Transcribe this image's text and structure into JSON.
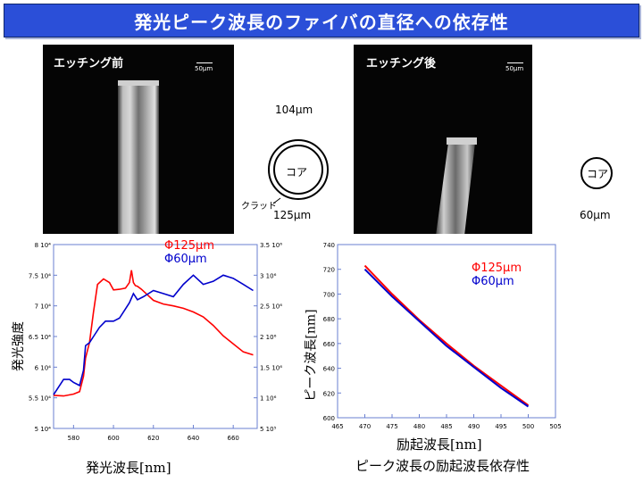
{
  "title": "発光ピーク波長のファイバの直径への依存性",
  "photos": {
    "before": {
      "label": "エッチング前",
      "scale": "50μm"
    },
    "after": {
      "label": "エッチング後",
      "scale": "50μm"
    }
  },
  "diagram_before": {
    "core_label": "コア",
    "clad_label": "クラッド",
    "inner_diameter": "104μm",
    "outer_diameter": "125μm"
  },
  "diagram_after": {
    "core_label": "コア",
    "diameter": "60μm"
  },
  "chart_data": [
    {
      "type": "line",
      "xlabel": "発光波長[nm]",
      "ylabel": "発光強度",
      "xlim": [
        570,
        672
      ],
      "ylim_left": [
        50000,
        80000
      ],
      "ylim_right": [
        500000,
        3500000
      ],
      "x_ticks": [
        "580",
        "600",
        "620",
        "640",
        "660"
      ],
      "y_ticks_left": [
        "5 10⁴",
        "5.5 10⁴",
        "6 10⁴",
        "6.5 10⁴",
        "7 10⁴",
        "7.5 10⁴",
        "8 10⁴"
      ],
      "y_ticks_right": [
        "5 10⁵",
        "1 10⁶",
        "1.5 10⁶",
        "2 10⁶",
        "2.5 10⁶",
        "3 10⁶",
        "3.5 10⁶"
      ],
      "legend": [
        "Φ125μm",
        "Φ60μm"
      ],
      "series": [
        {
          "name": "Φ125μm",
          "color": "#ff0000",
          "axis": "left",
          "x": [
            570,
            575,
            580,
            583,
            585,
            586,
            588,
            590,
            592,
            595,
            598,
            600,
            603,
            606,
            608,
            609,
            610,
            611,
            612,
            614,
            617,
            620,
            625,
            630,
            635,
            640,
            645,
            650,
            655,
            660,
            665,
            670
          ],
          "y": [
            55400,
            55300,
            55600,
            56000,
            58500,
            61500,
            64000,
            69000,
            73500,
            74400,
            73800,
            72600,
            72700,
            72900,
            73800,
            75800,
            73800,
            73300,
            73200,
            72700,
            71800,
            70900,
            70300,
            70000,
            69600,
            69000,
            68200,
            66800,
            65100,
            63800,
            62500,
            62000
          ]
        },
        {
          "name": "Φ60μm",
          "color": "#0000cc",
          "axis": "right",
          "x": [
            570,
            575,
            578,
            580,
            583,
            585,
            586,
            588,
            590,
            593,
            596,
            600,
            603,
            606,
            608,
            610,
            612,
            615,
            620,
            625,
            630,
            635,
            640,
            645,
            650,
            655,
            660,
            665,
            670
          ],
          "y": [
            1050000,
            1300000,
            1300000,
            1250000,
            1200000,
            1450000,
            1850000,
            1900000,
            2000000,
            2150000,
            2250000,
            2250000,
            2300000,
            2450000,
            2550000,
            2700000,
            2600000,
            2650000,
            2750000,
            2700000,
            2650000,
            2850000,
            3000000,
            2850000,
            2900000,
            3000000,
            2950000,
            2850000,
            2750000
          ]
        }
      ]
    },
    {
      "type": "line",
      "xlabel": "励起波長[nm]",
      "ylabel": "ピーク波長[nm]",
      "caption": "ピーク波長の励起波長依存性",
      "xlim": [
        465,
        505
      ],
      "ylim": [
        600,
        740
      ],
      "x_ticks": [
        "465",
        "470",
        "475",
        "480",
        "485",
        "490",
        "495",
        "500",
        "505"
      ],
      "y_ticks": [
        "600",
        "620",
        "640",
        "660",
        "680",
        "700",
        "720",
        "740"
      ],
      "legend": [
        "Φ125μm",
        "Φ60μm"
      ],
      "series": [
        {
          "name": "Φ125μm",
          "color": "#ff0000",
          "x": [
            470,
            475,
            480,
            485,
            490,
            495,
            500
          ],
          "y": [
            723,
            700,
            679,
            660,
            642,
            626,
            610
          ]
        },
        {
          "name": "Φ60μm",
          "color": "#0000cc",
          "x": [
            470,
            475,
            480,
            485,
            490,
            495,
            500
          ],
          "y": [
            720,
            698,
            678,
            658,
            641,
            624,
            609
          ]
        }
      ]
    }
  ]
}
